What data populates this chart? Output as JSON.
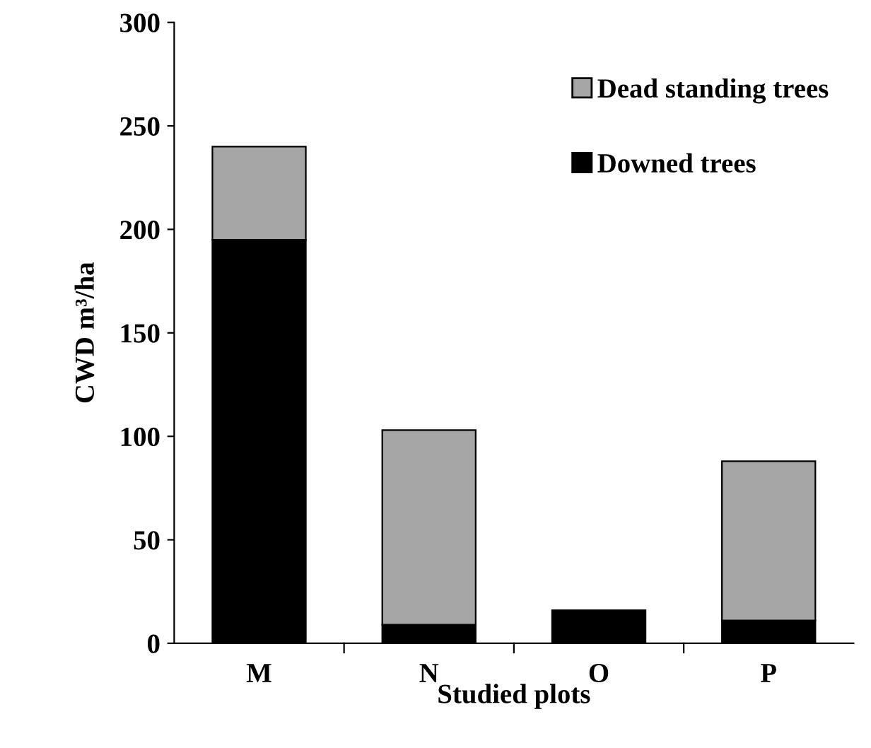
{
  "chart_data": {
    "type": "bar",
    "stacked": true,
    "xlabel": "Studied plots",
    "ylabel": "CWD m³/ha",
    "categories": [
      "M",
      "N",
      "O",
      "P"
    ],
    "series": [
      {
        "name": "Downed trees",
        "color": "#000000",
        "values": [
          195,
          9,
          16,
          11
        ]
      },
      {
        "name": "Dead standing trees",
        "color": "#a6a6a6",
        "values": [
          45,
          94,
          null,
          77
        ]
      }
    ],
    "ylim": [
      0,
      300
    ],
    "yticks": [
      0,
      50,
      100,
      150,
      200,
      250,
      300
    ],
    "grid": false,
    "legend": "top right"
  }
}
